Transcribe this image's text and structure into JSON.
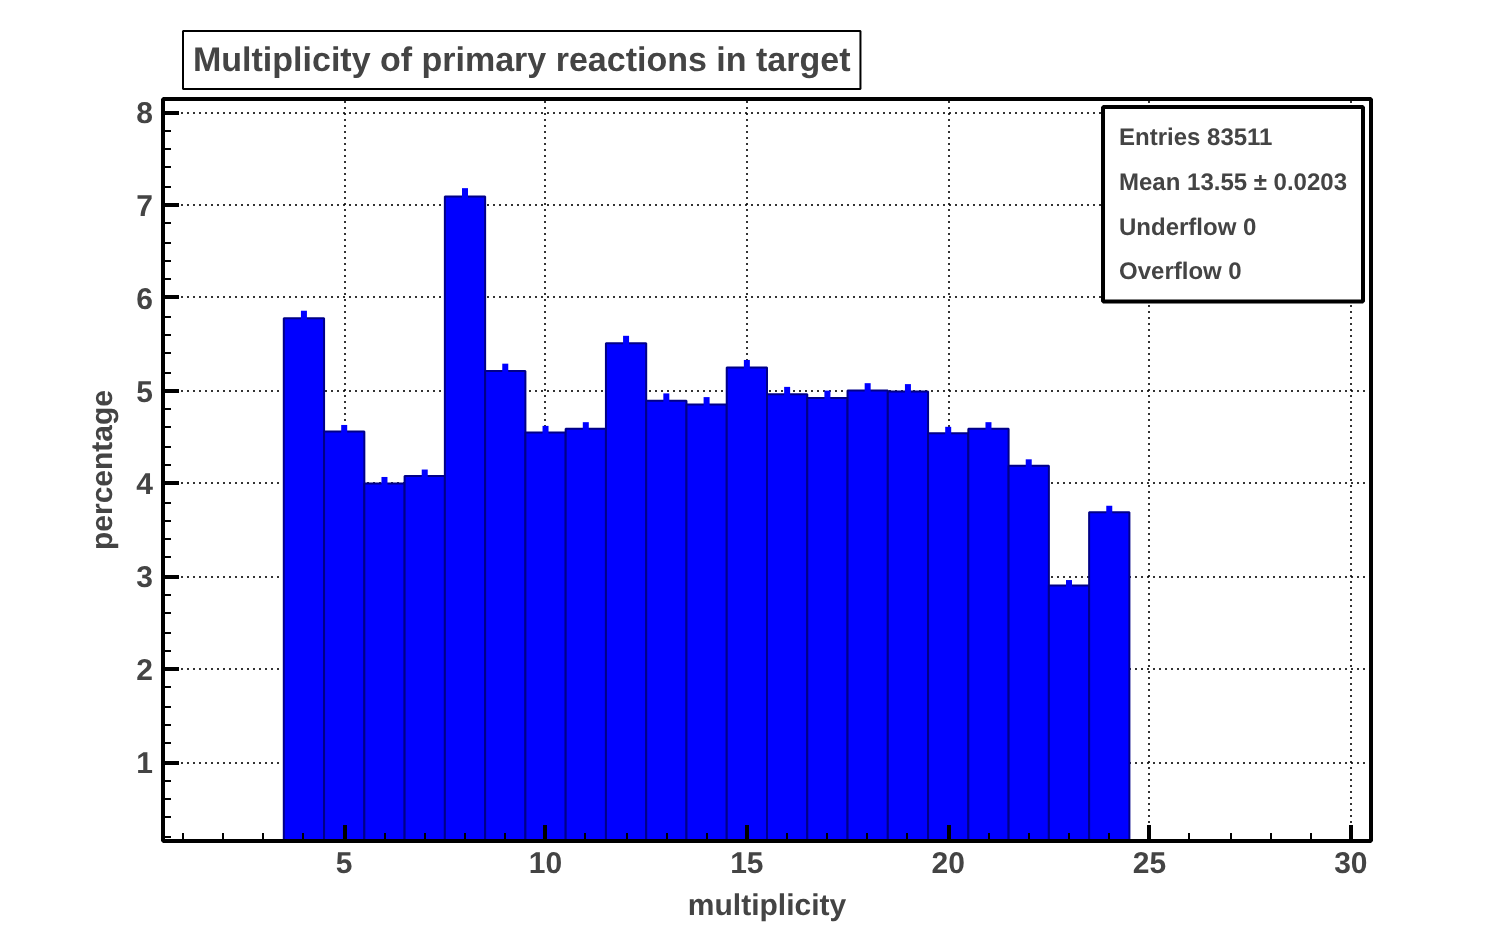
{
  "chart_data": {
    "type": "histogram",
    "title": "Multiplicity of primary reactions in target",
    "xlabel": "multiplicity",
    "ylabel": "percentage",
    "bins": [
      3.5,
      4.5,
      5.5,
      6.5,
      7.5,
      8.5,
      9.5,
      10.5,
      11.5,
      12.5,
      13.5,
      14.5,
      15.5,
      16.5,
      17.5,
      18.5,
      19.5,
      20.5,
      21.5,
      22.5,
      23.5,
      24.5
    ],
    "values": [
      5.78,
      4.56,
      4.0,
      4.08,
      7.09,
      5.21,
      4.55,
      4.59,
      5.51,
      4.89,
      4.85,
      5.25,
      4.96,
      4.92,
      5.0,
      4.99,
      4.54,
      4.59,
      4.19,
      2.9,
      3.69
    ],
    "errors": [
      0.08,
      0.07,
      0.07,
      0.07,
      0.09,
      0.08,
      0.07,
      0.07,
      0.08,
      0.08,
      0.08,
      0.08,
      0.08,
      0.08,
      0.08,
      0.08,
      0.07,
      0.07,
      0.07,
      0.06,
      0.07
    ],
    "color": "#0000ff",
    "xlim": [
      0.5,
      30.5
    ],
    "ylim": [
      0.15,
      8.14
    ],
    "xticks": [
      5,
      10,
      15,
      20,
      25,
      30
    ],
    "yticks": [
      1,
      2,
      3,
      4,
      5,
      6,
      7,
      8
    ],
    "grid": true,
    "annotations": [
      "Entries 83511",
      "Mean 13.55 ± 0.0203",
      "Underflow 0",
      "Overflow 0"
    ]
  }
}
